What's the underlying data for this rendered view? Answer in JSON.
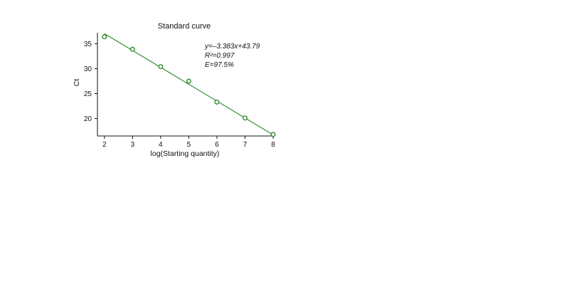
{
  "chart_data": {
    "type": "scatter",
    "title": "Standard curve",
    "xlabel": "log(Starting quantity)",
    "ylabel": "Ct",
    "xlim": [
      1.75,
      8.05
    ],
    "ylim": [
      16.5,
      37.2
    ],
    "x_ticks": [
      2,
      3,
      4,
      5,
      6,
      7,
      8
    ],
    "y_ticks": [
      20,
      25,
      30,
      35
    ],
    "grid": false,
    "series": [
      {
        "points": [
          {
            "x": 2,
            "y": 36.4
          },
          {
            "x": 3,
            "y": 33.9
          },
          {
            "x": 4,
            "y": 30.4
          },
          {
            "x": 5,
            "y": 27.5
          },
          {
            "x": 6,
            "y": 23.3
          },
          {
            "x": 7,
            "y": 20.1
          },
          {
            "x": 8,
            "y": 16.8
          }
        ],
        "color": "#2e8b2e"
      }
    ],
    "fit_line": {
      "slope": -3.383,
      "intercept": 43.79,
      "x_range": [
        2,
        8
      ],
      "color": "#2e8b2e"
    },
    "annotations": {
      "equation": "y=–3.383x+43.79",
      "r_squared": "R²=0.997",
      "efficiency": "E=97.5%"
    }
  }
}
